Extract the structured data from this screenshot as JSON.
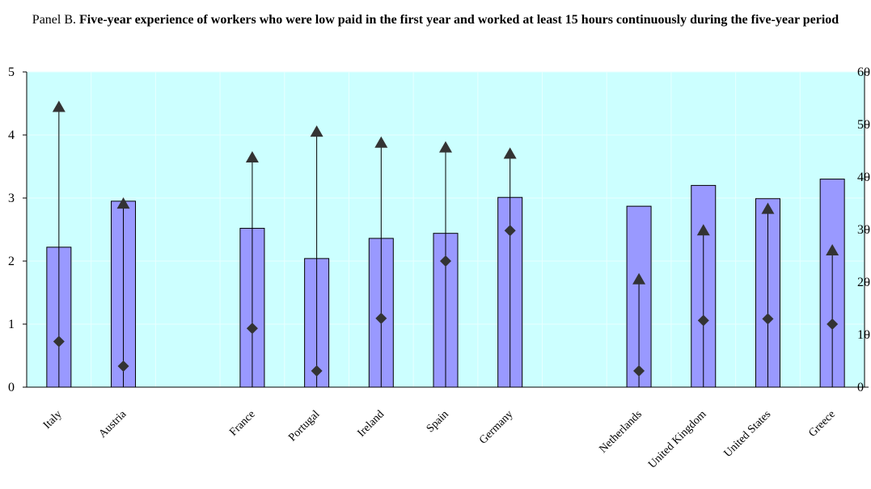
{
  "title": {
    "prefix": "Panel B. ",
    "bold": "Five-year experience of workers who were low paid in the first year and worked at least 15 hours continuously during the five-year period"
  },
  "chart_data": {
    "type": "bar",
    "title": "Panel B. Five-year experience of workers who were low paid in the first year and worked at least 15 hours continuously during the five-year period",
    "categories": [
      "Italy",
      "Austria",
      "",
      "France",
      "Portugal",
      "Ireland",
      "Spain",
      "Germany",
      "",
      "Netherlands",
      "United Kingdom",
      "United States",
      "Greece"
    ],
    "left_axis": {
      "ylim": [
        0,
        5
      ],
      "ticks": [
        0,
        1,
        2,
        3,
        4,
        5
      ]
    },
    "right_axis": {
      "ylim": [
        0,
        60
      ],
      "ticks": [
        0,
        10,
        20,
        30,
        40,
        50,
        60
      ]
    },
    "series": [
      {
        "axis": "left",
        "marker": "bar",
        "values": [
          2.22,
          2.95,
          null,
          2.52,
          2.04,
          2.36,
          2.44,
          3.01,
          null,
          2.87,
          3.2,
          2.99,
          3.3
        ]
      },
      {
        "axis": "right",
        "marker": "diamond",
        "values": [
          8.7,
          4.0,
          null,
          11.2,
          3.1,
          13.1,
          24.0,
          29.8,
          null,
          3.1,
          12.7,
          13.0,
          12.0
        ]
      },
      {
        "axis": "right",
        "marker": "triangle",
        "values": [
          53.3,
          34.9,
          null,
          43.7,
          48.6,
          46.5,
          45.6,
          44.4,
          null,
          20.5,
          29.8,
          33.9,
          26.0
        ]
      }
    ],
    "colors": {
      "bar_fill": "#9999ff",
      "bar_stroke": "#000000",
      "plot_bg": "#ccffff",
      "marker": "#333333",
      "grid": "#e8ffff"
    },
    "grid": true
  }
}
